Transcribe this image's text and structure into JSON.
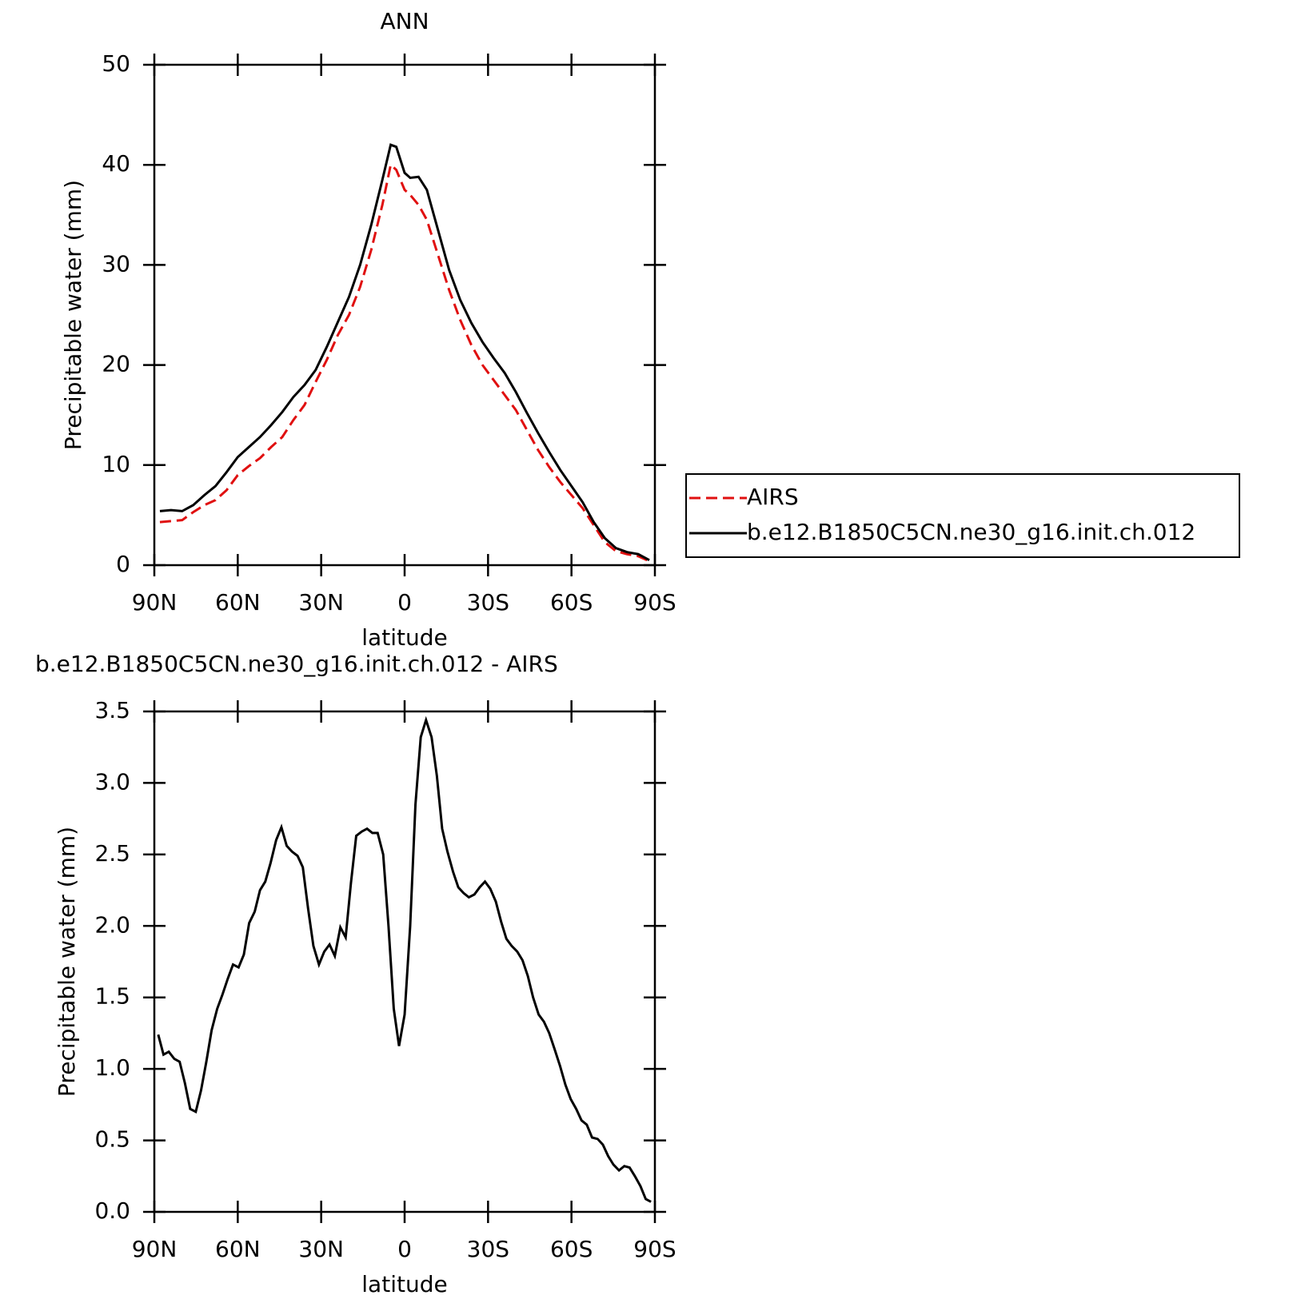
{
  "chart_data": [
    {
      "type": "line",
      "title": "ANN",
      "xlabel": "latitude",
      "ylabel": "Precipitable water (mm)",
      "x": [
        88,
        84,
        80,
        76,
        72,
        68,
        64,
        60,
        56,
        52,
        48,
        44,
        40,
        36,
        32,
        28,
        24,
        20,
        16,
        12,
        8,
        5,
        3,
        0,
        -2,
        -5,
        -8,
        -12,
        -16,
        -20,
        -24,
        -28,
        -32,
        -36,
        -40,
        -44,
        -48,
        -52,
        -56,
        -60,
        -64,
        -68,
        -72,
        -76,
        -80,
        -84,
        -88
      ],
      "series": [
        {
          "name": "AIRS",
          "color": "#e01010",
          "dash": true,
          "values": [
            4.3,
            4.4,
            4.5,
            5.3,
            6.0,
            6.5,
            7.5,
            9.0,
            9.9,
            10.7,
            11.8,
            12.8,
            14.5,
            16.0,
            18.3,
            20.5,
            23.0,
            25.0,
            27.8,
            31.5,
            36.0,
            40.0,
            39.5,
            37.5,
            37.0,
            36.0,
            34.5,
            31.0,
            27.5,
            24.5,
            22.0,
            20.0,
            18.5,
            17.0,
            15.5,
            13.5,
            11.5,
            9.8,
            8.3,
            7.0,
            5.7,
            4.0,
            2.3,
            1.4,
            1.1,
            0.9,
            0.4
          ]
        },
        {
          "name": "b.e12.B1850C5CN.ne30_g16.init.ch.012",
          "color": "#000000",
          "dash": false,
          "values": [
            5.4,
            5.5,
            5.4,
            6.0,
            7.0,
            7.9,
            9.3,
            10.8,
            11.8,
            12.8,
            14.0,
            15.3,
            16.8,
            18.0,
            19.5,
            21.8,
            24.3,
            26.8,
            30.0,
            34.0,
            38.5,
            42.0,
            41.8,
            39.2,
            38.7,
            38.8,
            37.5,
            33.5,
            29.5,
            26.5,
            24.2,
            22.3,
            20.7,
            19.2,
            17.3,
            15.2,
            13.2,
            11.3,
            9.5,
            7.9,
            6.3,
            4.3,
            2.7,
            1.7,
            1.3,
            1.1,
            0.5
          ]
        }
      ],
      "xlim": [
        90,
        -90
      ],
      "xticks": [
        {
          "value": 90,
          "label": "90N"
        },
        {
          "value": 60,
          "label": "60N"
        },
        {
          "value": 30,
          "label": "30N"
        },
        0,
        {
          "value": -30,
          "label": "30S"
        },
        {
          "value": -60,
          "label": "60S"
        },
        {
          "value": -90,
          "label": "90S"
        }
      ],
      "ylim": [
        0,
        50
      ],
      "yticks": [
        0,
        10,
        20,
        30,
        40,
        50
      ],
      "legend": "outside right"
    },
    {
      "type": "line",
      "title": "b.e12.B1850C5CN.ne30_g16.init.ch.012 - AIRS",
      "xlabel": "latitude",
      "ylabel": "Precipitable water (mm)",
      "x": [
        88.6,
        86.7,
        84.8,
        82.8,
        80.9,
        79.0,
        77.1,
        75.1,
        73.2,
        71.3,
        69.4,
        67.4,
        65.5,
        63.6,
        61.7,
        59.7,
        57.8,
        55.9,
        53.9,
        52.0,
        50.1,
        48.2,
        46.2,
        44.3,
        42.4,
        40.5,
        38.5,
        36.6,
        34.7,
        32.8,
        30.8,
        28.9,
        27.0,
        25.1,
        23.1,
        21.2,
        19.3,
        17.4,
        15.4,
        13.5,
        11.6,
        9.7,
        7.7,
        5.8,
        3.9,
        2.0,
        0.0,
        -2.0,
        -3.9,
        -5.8,
        -7.7,
        -9.7,
        -11.6,
        -13.5,
        -15.4,
        -17.4,
        -19.3,
        -21.2,
        -23.1,
        -25.1,
        -27.0,
        -28.9,
        -30.8,
        -32.8,
        -34.7,
        -36.6,
        -38.5,
        -40.5,
        -42.4,
        -44.3,
        -46.2,
        -48.2,
        -50.1,
        -52.0,
        -53.9,
        -55.9,
        -57.8,
        -59.7,
        -61.7,
        -63.6,
        -65.5,
        -67.4,
        -69.4,
        -71.3,
        -73.2,
        -75.1,
        -77.1,
        -79.0,
        -80.9,
        -82.8,
        -84.8,
        -86.7,
        -88.6
      ],
      "series": [
        {
          "color": "#000000",
          "dash": false,
          "values": [
            1.24,
            1.1,
            1.12,
            1.07,
            1.05,
            0.9,
            0.72,
            0.7,
            0.85,
            1.05,
            1.27,
            1.42,
            1.52,
            1.63,
            1.73,
            1.71,
            1.8,
            2.02,
            2.1,
            2.25,
            2.31,
            2.44,
            2.6,
            2.69,
            2.56,
            2.52,
            2.49,
            2.41,
            2.12,
            1.86,
            1.73,
            1.82,
            1.87,
            1.79,
            1.99,
            1.92,
            2.3,
            2.63,
            2.66,
            2.68,
            2.65,
            2.65,
            2.5,
            2.0,
            1.42,
            1.16,
            1.38,
            2.0,
            2.85,
            3.32,
            3.44,
            3.32,
            3.05,
            2.68,
            2.52,
            2.38,
            2.27,
            2.23,
            2.2,
            2.22,
            2.27,
            2.31,
            2.26,
            2.17,
            2.03,
            1.91,
            1.86,
            1.82,
            1.76,
            1.65,
            1.5,
            1.38,
            1.33,
            1.25,
            1.14,
            1.02,
            0.89,
            0.79,
            0.72,
            0.64,
            0.61,
            0.52,
            0.51,
            0.47,
            0.39,
            0.33,
            0.29,
            0.32,
            0.31,
            0.25,
            0.18,
            0.09,
            0.07
          ]
        }
      ],
      "xlim": [
        90,
        -90
      ],
      "xticks": [
        {
          "value": 90,
          "label": "90N"
        },
        {
          "value": 60,
          "label": "60N"
        },
        {
          "value": 30,
          "label": "30N"
        },
        0,
        {
          "value": -30,
          "label": "30S"
        },
        {
          "value": -60,
          "label": "60S"
        },
        {
          "value": -90,
          "label": "90S"
        }
      ],
      "ylim": [
        0,
        3.5
      ],
      "yticks": [
        {
          "value": 0,
          "label": "0.0"
        },
        0.5,
        {
          "value": 1,
          "label": "1.0"
        },
        1.5,
        {
          "value": 2,
          "label": "2.0"
        },
        2.5,
        {
          "value": 3,
          "label": "3.0"
        },
        3.5
      ]
    }
  ]
}
